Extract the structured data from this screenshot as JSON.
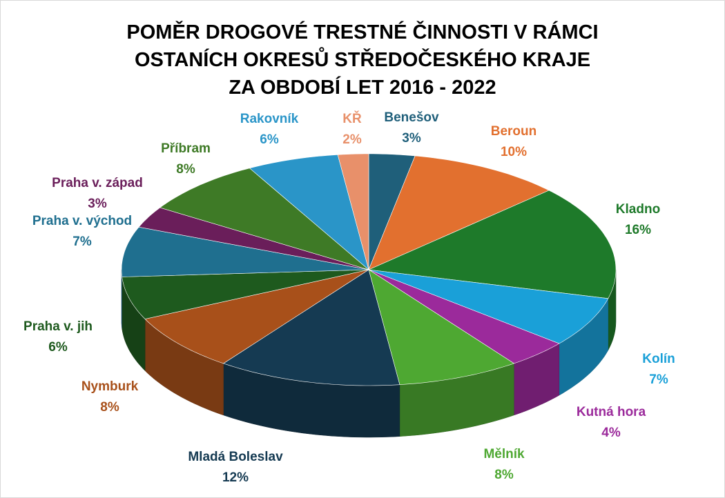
{
  "chart_data": {
    "type": "pie",
    "title": "POMĚR DROGOVÉ TRESTNÉ ČINNOSTI V RÁMCI\nOSTANÍCH OKRESŮ STŘEDOČESKÉHO KRAJE\nZA OBDOBÍ LET 2016 - 2022",
    "categories": [
      "Benešov",
      "Beroun",
      "Kladno",
      "Kolín",
      "Kutná hora",
      "Mělník",
      "Mladá Boleslav",
      "Nymburk",
      "Praha v. jih",
      "Praha v. východ",
      "Praha v. západ",
      "Příbram",
      "Rakovník",
      "KŘ"
    ],
    "values": [
      3,
      10,
      16,
      7,
      4,
      8,
      12,
      8,
      6,
      7,
      3,
      8,
      6,
      2
    ],
    "value_labels": [
      "3%",
      "10%",
      "16%",
      "7%",
      "4%",
      "8%",
      "12%",
      "8%",
      "6%",
      "7%",
      "3%",
      "8%",
      "6%",
      "2%"
    ],
    "colors": [
      "#1f5f7a",
      "#e2702f",
      "#1e7a2a",
      "#1aa0d8",
      "#9b2a9b",
      "#4ea832",
      "#153a52",
      "#a8501a",
      "#1e5a1e",
      "#1f6f8f",
      "#6a1e5a",
      "#3e7a26",
      "#2a95c8",
      "#e8906a"
    ]
  }
}
